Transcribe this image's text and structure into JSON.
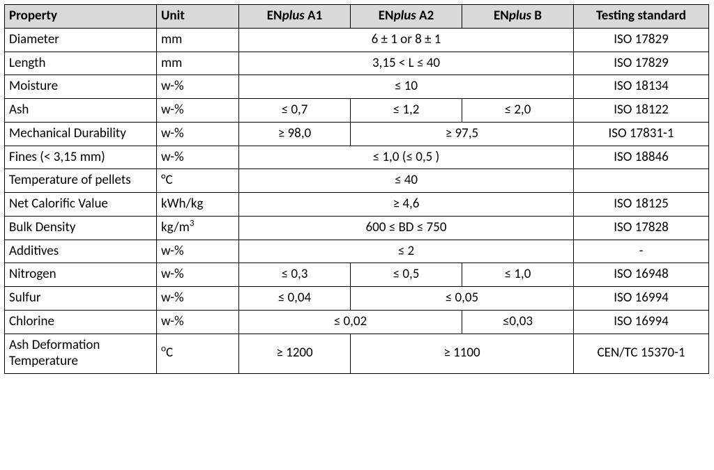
{
  "header": {
    "property": "Property",
    "unit": "Unit",
    "a1_pre": "EN",
    "a1_mid": "plus",
    "a1_suf": " A1",
    "a2_pre": "EN",
    "a2_mid": "plus",
    "a2_suf": " A2",
    "b_pre": "EN",
    "b_mid": "plus",
    "b_suf": " B",
    "testing": "Testing standard"
  },
  "rows": {
    "diameter": {
      "prop": "Diameter",
      "unit": "mm",
      "val": "6 ± 1 or 8 ± 1",
      "std": "ISO 17829"
    },
    "length": {
      "prop": "Length",
      "unit": "mm",
      "val": "3,15 < L ≤ 40",
      "std": "ISO 17829"
    },
    "moisture": {
      "prop": "Moisture",
      "unit": "w-%",
      "val": "≤ 10",
      "std": "ISO 18134"
    },
    "ash": {
      "prop": "Ash",
      "unit": "w-%",
      "a1": "≤ 0,7",
      "a2": "≤ 1,2",
      "b": "≤ 2,0",
      "std": "ISO 18122"
    },
    "mechdur": {
      "prop": "Mechanical Durability",
      "unit": "w-%",
      "a1": "≥ 98,0",
      "a2b": "≥ 97,5",
      "std": "ISO 17831-1"
    },
    "fines": {
      "prop": "Fines (< 3,15 mm)",
      "unit": "w-%",
      "val": "≤ 1,0    (≤ 0,5   )",
      "std": "ISO 18846"
    },
    "temp": {
      "prop": "Temperature of pellets",
      "unit": "°C",
      "val": "≤ 40",
      "std": ""
    },
    "ncv": {
      "prop": "Net Calorific Value",
      "unit": "kWh/kg",
      "val": "≥ 4,6",
      "std": "ISO 18125"
    },
    "bulk": {
      "prop": "Bulk Density",
      "unit_html": "kg/m<sup>3</sup>",
      "val": "600 ≤ BD ≤ 750",
      "std": "ISO 17828"
    },
    "additives": {
      "prop": "Additives",
      "unit": "w-%",
      "val": "≤ 2",
      "std": "-"
    },
    "nitrogen": {
      "prop": "Nitrogen",
      "unit": "w-%",
      "a1": "≤ 0,3",
      "a2": "≤ 0,5",
      "b": "≤ 1,0",
      "std": "ISO 16948"
    },
    "sulfur": {
      "prop": "Sulfur",
      "unit": "w-%",
      "a1": "≤ 0,04",
      "a2b": "≤ 0,05",
      "std": "ISO 16994"
    },
    "chlorine": {
      "prop": "Chlorine",
      "unit": "w-%",
      "a1a2": "≤ 0,02",
      "b": "≤0,03",
      "std": "ISO 16994"
    },
    "ashdef": {
      "prop": "Ash Deformation Temperature",
      "unit_html": "<sup>o</sup>C",
      "a1": "≥ 1200",
      "a2b": "≥ 1100",
      "std": "CEN/TC 15370-1"
    }
  }
}
